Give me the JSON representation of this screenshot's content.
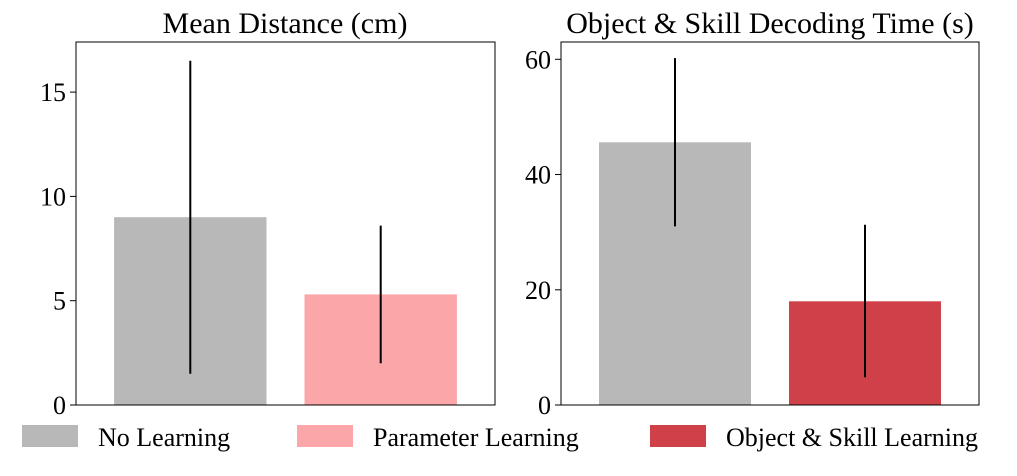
{
  "chart_data": [
    {
      "type": "bar",
      "title": "Mean Distance (cm)",
      "xlabel": "",
      "ylabel": "",
      "categories": [
        "No Learning",
        "Parameter Learning"
      ],
      "values": [
        9.0,
        5.3
      ],
      "error_low": [
        1.5,
        2.0
      ],
      "error_high": [
        16.5,
        8.6
      ],
      "colors": [
        "#b8b8b8",
        "#fba6a8"
      ],
      "ylim": [
        0,
        17.4
      ],
      "yticks": [
        0,
        5,
        10,
        15
      ],
      "grid": false
    },
    {
      "type": "bar",
      "title": "Object & Skill Decoding Time (s)",
      "xlabel": "",
      "ylabel": "",
      "categories": [
        "No Learning",
        "Object & Skill Learning"
      ],
      "values": [
        45.6,
        18.0
      ],
      "error_low": [
        31.0,
        4.8
      ],
      "error_high": [
        60.2,
        31.3
      ],
      "colors": [
        "#b8b8b8",
        "#cf4049"
      ],
      "ylim": [
        0,
        63.0
      ],
      "yticks": [
        0,
        20,
        40,
        60
      ],
      "grid": false
    }
  ],
  "legend": {
    "placement": "bottom",
    "items": [
      {
        "label": "No Learning",
        "color": "#b8b8b8"
      },
      {
        "label": "Parameter Learning",
        "color": "#fba6a8"
      },
      {
        "label": "Object & Skill Learning",
        "color": "#cf4049"
      }
    ]
  }
}
